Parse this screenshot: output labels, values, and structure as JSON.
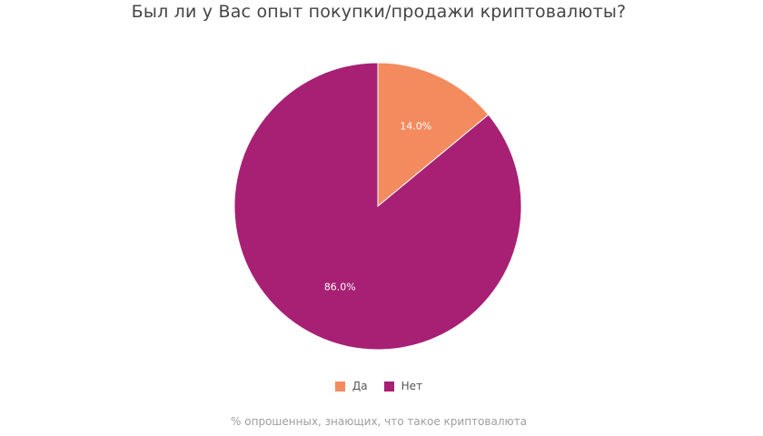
{
  "chart_data": {
    "type": "pie",
    "title": "Был ли у Вас опыт покупки/продажи криптовалюты?",
    "categories": [
      "Да",
      "Нет"
    ],
    "values": [
      14.0,
      86.0
    ],
    "labels": [
      "14.0%",
      "86.0%"
    ],
    "colors": [
      "#f48b5f",
      "#a72074"
    ],
    "legend_position": "bottom",
    "caption": "% опрошенных, знающих, что такое криптовалюта"
  },
  "legend": [
    {
      "label": "Да",
      "color": "#f48b5f"
    },
    {
      "label": "Нет",
      "color": "#a72074"
    }
  ]
}
